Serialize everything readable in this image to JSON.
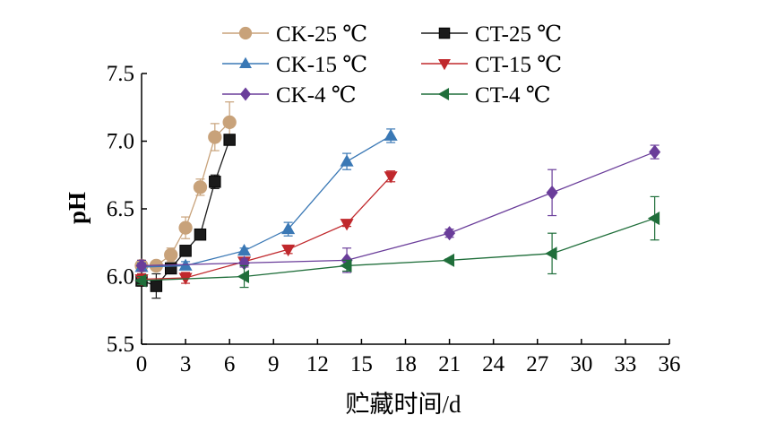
{
  "chart_data": {
    "type": "line",
    "title": "",
    "xlabel": "贮藏时间/d",
    "ylabel": "pH",
    "xlim": [
      0,
      36
    ],
    "ylim": [
      5.5,
      7.5
    ],
    "xticks": [
      0,
      3,
      6,
      9,
      12,
      15,
      18,
      21,
      24,
      27,
      30,
      33,
      36
    ],
    "yticks": [
      5.5,
      6.0,
      6.5,
      7.0,
      7.5
    ],
    "grid": false,
    "legend_position": "top",
    "series": [
      {
        "name": "CK-25 ℃",
        "color": "#C8A27A",
        "marker": "circle",
        "x": [
          0,
          1,
          2,
          3,
          4,
          5,
          6
        ],
        "y": [
          6.08,
          6.08,
          6.16,
          6.36,
          6.66,
          7.03,
          7.14
        ],
        "err": [
          0.04,
          0.02,
          0.05,
          0.08,
          0.06,
          0.1,
          0.15
        ]
      },
      {
        "name": "CT-25 ℃",
        "color": "#1a1a1a",
        "marker": "square",
        "x": [
          0,
          1,
          2,
          3,
          4,
          5,
          6
        ],
        "y": [
          5.97,
          5.93,
          6.06,
          6.19,
          6.31,
          6.7,
          7.01
        ],
        "err": [
          0.04,
          0.09,
          0.02,
          0.03,
          0.03,
          0.05,
          0.02
        ]
      },
      {
        "name": "CK-15 ℃",
        "color": "#3A78B5",
        "marker": "triangle-up",
        "x": [
          0,
          3,
          7,
          10,
          14,
          17
        ],
        "y": [
          6.07,
          6.08,
          6.19,
          6.35,
          6.85,
          7.04
        ],
        "err": [
          0.03,
          0.03,
          0.02,
          0.05,
          0.06,
          0.05
        ]
      },
      {
        "name": "CT-15 ℃",
        "color": "#C0282C",
        "marker": "triangle-down",
        "x": [
          0,
          3,
          7,
          10,
          14,
          17
        ],
        "y": [
          5.98,
          5.99,
          6.11,
          6.2,
          6.39,
          6.74
        ],
        "err": [
          0.04,
          0.04,
          0.02,
          0.03,
          0.02,
          0.04
        ]
      },
      {
        "name": "CK-4 ℃",
        "color": "#6A3D9A",
        "marker": "diamond",
        "x": [
          0,
          7,
          14,
          21,
          28,
          35
        ],
        "y": [
          6.08,
          6.1,
          6.12,
          6.32,
          6.62,
          6.92
        ],
        "err": [
          0.04,
          0.03,
          0.09,
          0.03,
          0.17,
          0.05
        ]
      },
      {
        "name": "CT-4 ℃",
        "color": "#1F6E3A",
        "marker": "triangle-left",
        "x": [
          0,
          7,
          14,
          21,
          28,
          35
        ],
        "y": [
          5.97,
          6.0,
          6.08,
          6.12,
          6.17,
          6.43
        ],
        "err": [
          0.03,
          0.08,
          0.04,
          0.01,
          0.15,
          0.16
        ]
      }
    ]
  }
}
